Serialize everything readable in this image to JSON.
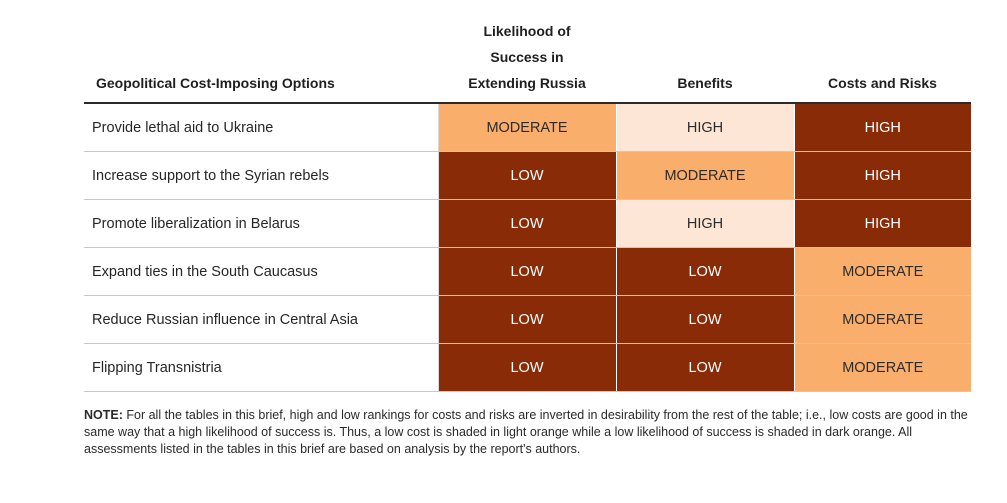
{
  "table": {
    "headers": {
      "option": "Geopolitical Cost-Imposing Options",
      "likelihood_line1": "Likelihood of",
      "likelihood_line2": "Success in",
      "likelihood_line3": "Extending Russia",
      "benefits": "Benefits",
      "costs": "Costs and Risks"
    },
    "rows": [
      {
        "option": "Provide lethal aid to Ukraine",
        "likelihood": "MODERATE",
        "benefits": "HIGH",
        "costs": "HIGH"
      },
      {
        "option": "Increase support to the Syrian rebels",
        "likelihood": "LOW",
        "benefits": "MODERATE",
        "costs": "HIGH"
      },
      {
        "option": "Promote liberalization in Belarus",
        "likelihood": "LOW",
        "benefits": "HIGH",
        "costs": "HIGH"
      },
      {
        "option": "Expand ties in the South Caucasus",
        "likelihood": "LOW",
        "benefits": "LOW",
        "costs": "MODERATE"
      },
      {
        "option": "Reduce Russian influence in Central Asia",
        "likelihood": "LOW",
        "benefits": "LOW",
        "costs": "MODERATE"
      },
      {
        "option": "Flipping Transnistria",
        "likelihood": "LOW",
        "benefits": "LOW",
        "costs": "MODERATE"
      }
    ],
    "shading": {
      "dark_orange": "#8a2b07",
      "medium_orange": "#f9ae6c",
      "light_orange": "#fde6d6"
    }
  },
  "note": {
    "label": "NOTE:",
    "text": " For all the tables in this brief, high and low rankings for costs and risks are inverted in desirability from the rest of the table; i.e., low costs are good in the same way that a high likelihood of success is. Thus, a low cost is shaded in light orange while a low likelihood of success is shaded in dark orange. All assessments listed in the tables in this brief are based on analysis by the report's authors."
  }
}
